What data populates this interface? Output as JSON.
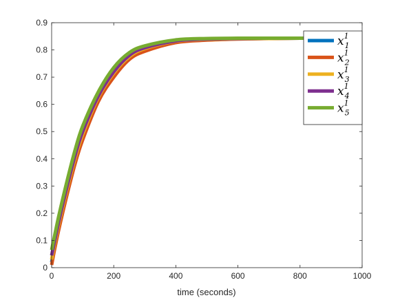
{
  "chart_data": {
    "type": "line",
    "title": "",
    "xlabel": "time (seconds)",
    "ylabel": "",
    "xlim": [
      0,
      1000
    ],
    "ylim": [
      0,
      0.9
    ],
    "xticks": [
      0,
      200,
      400,
      600,
      800,
      1000
    ],
    "xtick_labels": [
      "0",
      "200",
      "400",
      "600",
      "800",
      "1000"
    ],
    "yticks": [
      0,
      0.1,
      0.2,
      0.3,
      0.4,
      0.5,
      0.6,
      0.7,
      0.8,
      0.9
    ],
    "ytick_labels": [
      "0",
      "0.1",
      "0.2",
      "0.3",
      "0.4",
      "0.5",
      "0.6",
      "0.7",
      "0.8",
      "0.9"
    ],
    "grid": false,
    "legend_position": "top-right",
    "series": [
      {
        "name": "x_1^1",
        "base": "x",
        "sub": "1",
        "sup": "1",
        "color": "#0072BD",
        "x": [
          0,
          10,
          25,
          50,
          75,
          100,
          150,
          200,
          250,
          300,
          400,
          500,
          600,
          700,
          800,
          900,
          1000
        ],
        "y": [
          0.02,
          0.08,
          0.16,
          0.28,
          0.39,
          0.48,
          0.62,
          0.71,
          0.77,
          0.8,
          0.83,
          0.838,
          0.841,
          0.842,
          0.843,
          0.843,
          0.843
        ]
      },
      {
        "name": "x_2^1",
        "base": "x",
        "sub": "2",
        "sup": "1",
        "color": "#D95319",
        "x": [
          0,
          10,
          25,
          50,
          75,
          100,
          150,
          200,
          250,
          300,
          400,
          500,
          600,
          700,
          800,
          900,
          1000
        ],
        "y": [
          0.01,
          0.07,
          0.15,
          0.27,
          0.38,
          0.47,
          0.61,
          0.7,
          0.765,
          0.795,
          0.827,
          0.836,
          0.84,
          0.842,
          0.843,
          0.843,
          0.843
        ]
      },
      {
        "name": "x_3^1",
        "base": "x",
        "sub": "3",
        "sup": "1",
        "color": "#EDB120",
        "x": [
          0,
          10,
          25,
          50,
          75,
          100,
          150,
          200,
          250,
          300,
          400,
          500,
          600,
          700,
          800,
          900,
          1000
        ],
        "y": [
          0.03,
          0.09,
          0.17,
          0.29,
          0.4,
          0.49,
          0.625,
          0.715,
          0.775,
          0.805,
          0.832,
          0.839,
          0.841,
          0.842,
          0.843,
          0.843,
          0.843
        ]
      },
      {
        "name": "x_4^1",
        "base": "x",
        "sub": "4",
        "sup": "1",
        "color": "#7E2F8E",
        "x": [
          0,
          10,
          25,
          50,
          75,
          100,
          150,
          200,
          250,
          300,
          400,
          500,
          600,
          700,
          800,
          900,
          1000
        ],
        "y": [
          0.045,
          0.1,
          0.18,
          0.3,
          0.41,
          0.5,
          0.63,
          0.72,
          0.78,
          0.808,
          0.833,
          0.84,
          0.842,
          0.843,
          0.843,
          0.843,
          0.843
        ]
      },
      {
        "name": "x_5^1",
        "base": "x",
        "sub": "5",
        "sup": "1",
        "color": "#77AC30",
        "x": [
          0,
          10,
          25,
          50,
          75,
          100,
          150,
          200,
          250,
          300,
          400,
          500,
          600,
          700,
          800,
          900,
          1000
        ],
        "y": [
          0.065,
          0.12,
          0.2,
          0.32,
          0.43,
          0.52,
          0.645,
          0.735,
          0.79,
          0.815,
          0.837,
          0.842,
          0.843,
          0.843,
          0.843,
          0.843,
          0.843
        ]
      }
    ]
  }
}
